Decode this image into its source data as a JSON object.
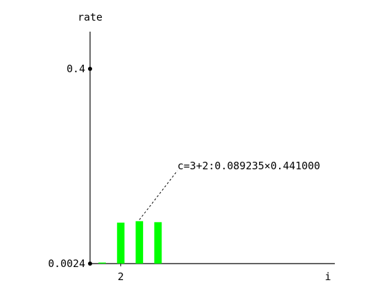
{
  "chart_data": {
    "type": "bar",
    "ylabel": "rate",
    "xlabel": "i",
    "y_ticks": [
      {
        "value": 0.4,
        "label": "0.4"
      },
      {
        "value": 0.0024,
        "label": "0.0024"
      }
    ],
    "x_ticks": [
      {
        "value": 2,
        "label": "2"
      }
    ],
    "ylim": [
      0.0024,
      0.4
    ],
    "xlim": [
      0.35,
      13.5
    ],
    "bar_color": "#00ff00",
    "bars": [
      {
        "x": 1,
        "value": 0.0024
      },
      {
        "x": 2,
        "value": 0.086
      },
      {
        "x": 3,
        "value": 0.089
      },
      {
        "x": 4,
        "value": 0.087
      }
    ],
    "annotation": {
      "text": "c=3+2:0.089235×0.441000",
      "target_bar_index": 2
    },
    "grid": false,
    "legend": "none"
  }
}
